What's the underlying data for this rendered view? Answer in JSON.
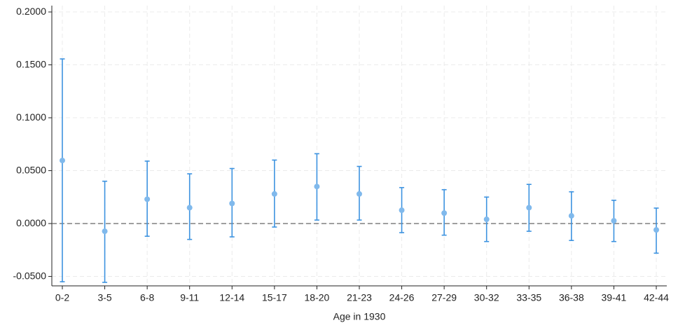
{
  "chart_data": {
    "type": "errorbar",
    "x_label": "Age in 1930",
    "categories": [
      "0-2",
      "3-5",
      "6-8",
      "9-11",
      "12-14",
      "15-17",
      "18-20",
      "21-23",
      "24-26",
      "27-29",
      "30-32",
      "33-35",
      "36-38",
      "39-41",
      "42-44"
    ],
    "values": [
      0.0596,
      -0.0073,
      0.023,
      0.015,
      0.019,
      0.028,
      0.035,
      0.028,
      0.0126,
      0.0099,
      0.004,
      0.015,
      0.0073,
      0.0026,
      -0.006
    ],
    "lower": [
      -0.055,
      -0.0556,
      -0.012,
      -0.015,
      -0.0126,
      -0.0033,
      0.0033,
      0.0033,
      -0.0086,
      -0.011,
      -0.017,
      -0.0073,
      -0.016,
      -0.017,
      -0.028
    ],
    "upper": [
      0.1556,
      0.04,
      0.059,
      0.047,
      0.052,
      0.06,
      0.066,
      0.054,
      0.034,
      0.032,
      0.025,
      0.037,
      0.03,
      0.022,
      0.0146
    ],
    "bar_color": "#3d93e0",
    "point_color": "#80b9ec",
    "ylim": [
      -0.0589,
      0.206
    ],
    "yticks": [
      {
        "value": -0.05,
        "label": "-0.0500"
      },
      {
        "value": 0,
        "label": "0.0000"
      },
      {
        "value": 0.05,
        "label": "0.0500"
      },
      {
        "value": 0.1,
        "label": "0.1000"
      },
      {
        "value": 0.15,
        "label": "0.1500"
      },
      {
        "value": 0.2,
        "label": "0.2000"
      }
    ],
    "reference_line": 0,
    "grid": true
  }
}
